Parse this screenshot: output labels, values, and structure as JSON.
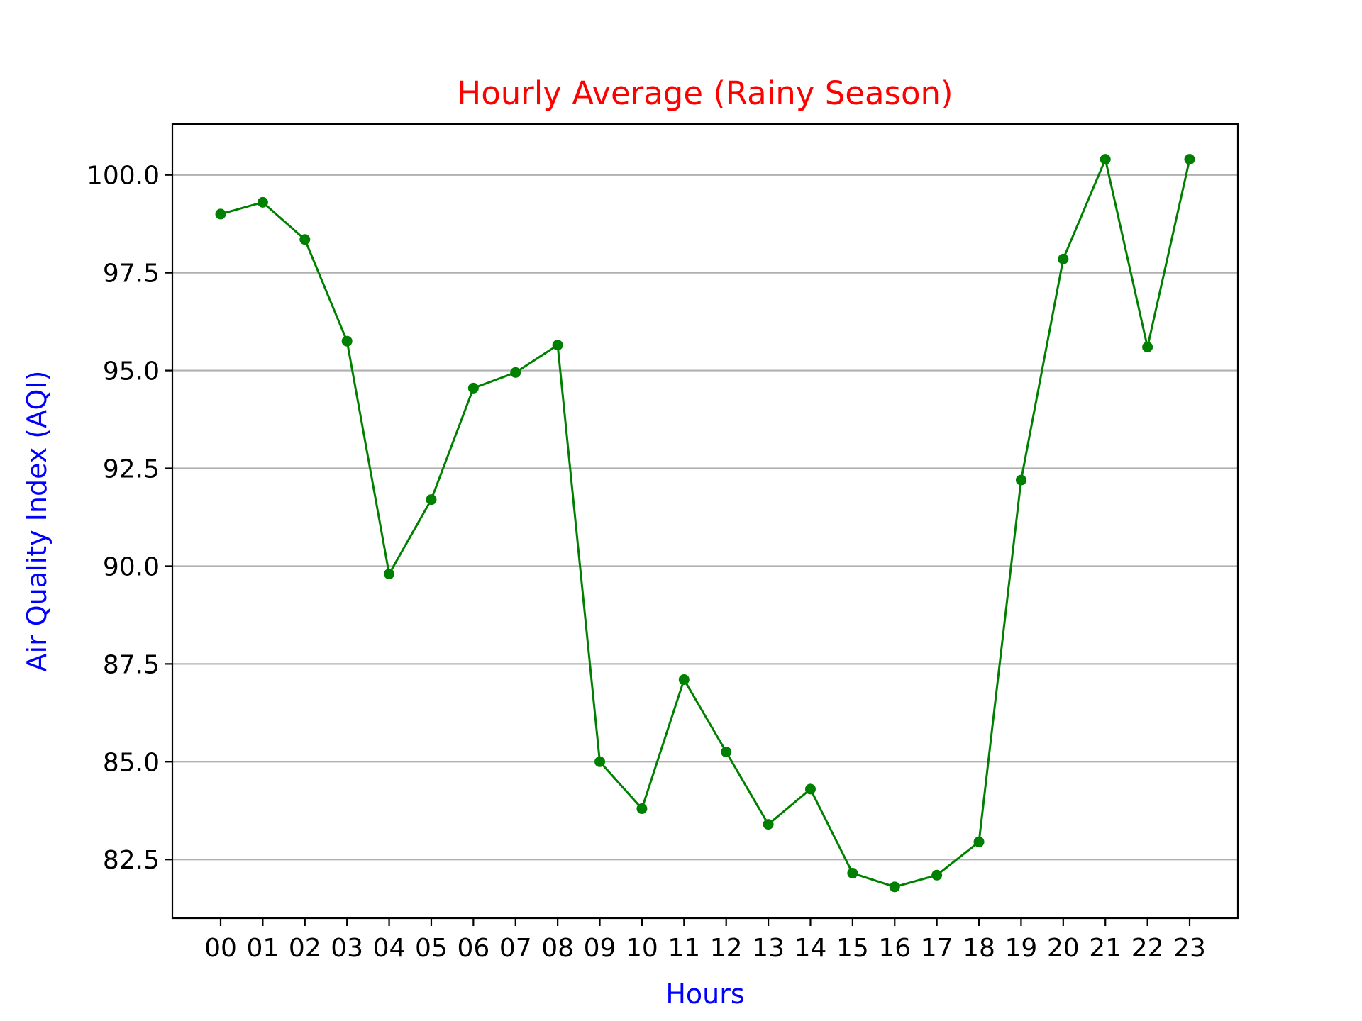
{
  "chart_data": {
    "type": "line",
    "title": "Hourly Average (Rainy Season)",
    "xlabel": "Hours",
    "ylabel": "Air Quality Index (AQI)",
    "categories": [
      "00",
      "01",
      "02",
      "03",
      "04",
      "05",
      "06",
      "07",
      "08",
      "09",
      "10",
      "11",
      "12",
      "13",
      "14",
      "15",
      "16",
      "17",
      "18",
      "19",
      "20",
      "21",
      "22",
      "23"
    ],
    "series": [
      {
        "values": [
          99.0,
          99.3,
          98.35,
          95.75,
          89.8,
          91.7,
          94.55,
          94.95,
          95.65,
          85.0,
          83.8,
          87.1,
          85.25,
          83.4,
          84.3,
          82.15,
          81.8,
          82.1,
          82.95,
          92.2,
          97.85,
          100.4,
          95.6,
          100.4
        ],
        "color": "#008000"
      }
    ],
    "ylim": [
      81.0,
      101.3
    ],
    "yticks": [
      82.5,
      85.0,
      87.5,
      90.0,
      92.5,
      95.0,
      97.5,
      100.0
    ],
    "ytick_labels": [
      "82.5",
      "85.0",
      "87.5",
      "90.0",
      "92.5",
      "95.0",
      "97.5",
      "100.0"
    ],
    "grid": "y-only",
    "colors": {
      "title": "#ff0000",
      "axis_labels": "#0000ff",
      "grid": "#b0b0b0"
    }
  }
}
